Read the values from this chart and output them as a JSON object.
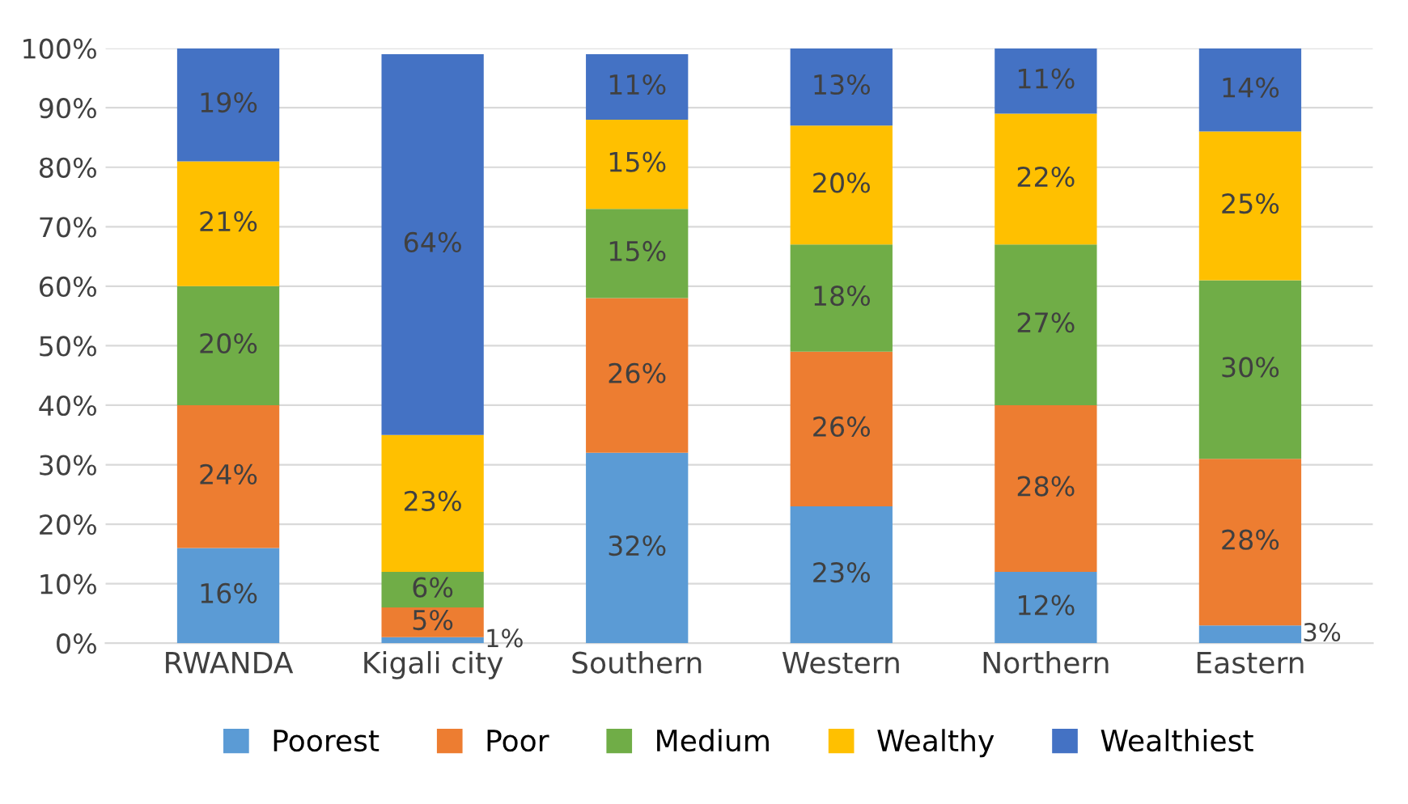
{
  "chart_data": {
    "type": "bar",
    "stacked": true,
    "categories": [
      "RWANDA",
      "Kigali city",
      "Southern",
      "Western",
      "Northern",
      "Eastern"
    ],
    "series": [
      {
        "name": "Poorest",
        "color": "#5b9bd5",
        "values": [
          16,
          1,
          32,
          23,
          12,
          3
        ],
        "value_labels": [
          "16%",
          "1%",
          "32%",
          "23%",
          "12%",
          "3%"
        ]
      },
      {
        "name": "Poor",
        "color": "#ed7d31",
        "values": [
          24,
          5,
          26,
          26,
          28,
          28
        ],
        "value_labels": [
          "24%",
          "5%",
          "26%",
          "26%",
          "28%",
          "28%"
        ]
      },
      {
        "name": "Medium",
        "color": "#70ad47",
        "values": [
          20,
          6,
          15,
          18,
          27,
          30
        ],
        "value_labels": [
          "20%",
          "6%",
          "15%",
          "18%",
          "27%",
          "30%"
        ]
      },
      {
        "name": "Wealthy",
        "color": "#ffc000",
        "values": [
          21,
          23,
          15,
          20,
          22,
          25
        ],
        "value_labels": [
          "21%",
          "23%",
          "15%",
          "20%",
          "22%",
          "25%"
        ]
      },
      {
        "name": "Wealthiest",
        "color": "#4472c4",
        "values": [
          19,
          64,
          11,
          13,
          11,
          14
        ],
        "value_labels": [
          "19%",
          "64%",
          "11%",
          "13%",
          "11%",
          "14%"
        ]
      }
    ],
    "ylim": [
      0,
      100
    ],
    "yticks": [
      {
        "value": 0,
        "label": "0%"
      },
      {
        "value": 10,
        "label": "10%"
      },
      {
        "value": 20,
        "label": "20%"
      },
      {
        "value": 30,
        "label": "30%"
      },
      {
        "value": 40,
        "label": "40%"
      },
      {
        "value": 50,
        "label": "50%"
      },
      {
        "value": 60,
        "label": "60%"
      },
      {
        "value": 70,
        "label": "70%"
      },
      {
        "value": 80,
        "label": "80%"
      },
      {
        "value": 90,
        "label": "90%"
      },
      {
        "value": 100,
        "label": "100%"
      }
    ],
    "grid": "y",
    "legend": "bottom"
  }
}
